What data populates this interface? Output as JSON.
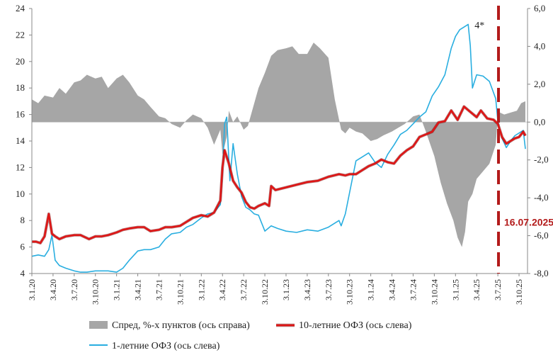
{
  "chart_data": {
    "type": "line",
    "title": "",
    "left_axis": {
      "min": 4,
      "max": 24,
      "ticks": [
        "24",
        "22",
        "20",
        "18",
        "16",
        "14",
        "12",
        "10",
        "8",
        "6",
        "4"
      ]
    },
    "right_axis": {
      "min": -8,
      "max": 6,
      "ticks": [
        "6,0",
        "4,0",
        "2,0",
        "0,0",
        "-2,0",
        "-4,0",
        "-6,0",
        "-8,0"
      ]
    },
    "x_labels": [
      "3.1.20",
      "3.4.20",
      "3.7.20",
      "3.10.20",
      "3.1.21",
      "3.4.21",
      "3.7.21",
      "3.10.21",
      "3.1.22",
      "3.4.22",
      "3.7.22",
      "3.10.22",
      "3.1.23",
      "3.4.23",
      "3.7.23",
      "3.10.23",
      "3.1.24",
      "3.4.24",
      "3.7.24",
      "3.10.24",
      "3.1.25",
      "3.4.25",
      "3.7.25",
      "3.10.25"
    ],
    "x_range": [
      0,
      23.4
    ],
    "marker_label": "4*",
    "marker_x": 20.7,
    "marker_y": 22.6,
    "vline_x": 22.03,
    "vline_label": "16.07.2025",
    "vline_label_y": 7.6,
    "series": [
      {
        "name": "Спред, %-х пунктов (ось справа)",
        "axis": "right",
        "type": "area",
        "color": "#a6a6a6",
        "x": [
          0,
          0.3,
          0.6,
          1.0,
          1.3,
          1.6,
          2.0,
          2.3,
          2.6,
          3.0,
          3.3,
          3.6,
          4.0,
          4.3,
          4.6,
          5.0,
          5.3,
          5.6,
          6.0,
          6.3,
          6.6,
          7.0,
          7.3,
          7.6,
          8.0,
          8.3,
          8.6,
          8.9,
          9.0,
          9.2,
          9.3,
          9.5,
          9.7,
          10.0,
          10.2,
          10.4,
          10.7,
          11.0,
          11.3,
          11.6,
          12.0,
          12.3,
          12.6,
          13.0,
          13.3,
          13.6,
          14.0,
          14.3,
          14.6,
          14.8,
          15.0,
          15.3,
          15.6,
          16.0,
          16.3,
          16.6,
          17.0,
          17.3,
          17.6,
          18.0,
          18.3,
          18.6,
          19.0,
          19.3,
          19.6,
          19.9,
          20.1,
          20.3,
          20.45,
          20.6,
          20.8,
          21.0,
          21.3,
          21.6,
          21.9,
          22.0,
          22.1,
          22.3,
          22.6,
          22.9,
          23.1,
          23.3
        ],
        "values": [
          1.2,
          1.0,
          1.4,
          1.3,
          1.8,
          1.5,
          2.1,
          2.2,
          2.5,
          2.3,
          2.4,
          1.8,
          2.3,
          2.5,
          2.1,
          1.4,
          1.2,
          0.8,
          0.3,
          0.2,
          -0.1,
          -0.3,
          0.1,
          0.4,
          0.2,
          -0.3,
          -1.2,
          -0.4,
          -1.7,
          -0.8,
          0.6,
          0.0,
          0.3,
          -0.4,
          -0.2,
          0.6,
          1.8,
          2.6,
          3.5,
          3.8,
          3.9,
          4.0,
          3.6,
          3.6,
          4.2,
          3.9,
          3.4,
          1.2,
          -0.4,
          -0.6,
          -0.3,
          -0.5,
          -0.6,
          -1.0,
          -0.9,
          -0.7,
          -0.5,
          -0.3,
          -0.1,
          0.3,
          0.4,
          -0.5,
          -1.8,
          -3.2,
          -4.3,
          -5.2,
          -6.1,
          -6.6,
          -5.8,
          -4.2,
          -3.8,
          -3.0,
          -2.6,
          -2.2,
          -1.2,
          0.3,
          0.5,
          0.4,
          0.5,
          0.6,
          1.0,
          1.1
        ]
      },
      {
        "name": "10-летние ОФЗ (ось слева)",
        "axis": "left",
        "color": "#e01414",
        "x": [
          0,
          0.2,
          0.4,
          0.6,
          0.8,
          0.95,
          1.1,
          1.3,
          1.6,
          2.0,
          2.3,
          2.7,
          3.0,
          3.3,
          3.6,
          4.0,
          4.3,
          4.6,
          5.0,
          5.3,
          5.6,
          6.0,
          6.3,
          6.6,
          7.0,
          7.3,
          7.6,
          8.0,
          8.3,
          8.6,
          8.9,
          9.0,
          9.1,
          9.3,
          9.5,
          9.7,
          9.9,
          10.1,
          10.3,
          10.5,
          10.7,
          11.0,
          11.2,
          11.3,
          11.5,
          12.0,
          12.5,
          13.0,
          13.5,
          14.0,
          14.5,
          14.8,
          15.0,
          15.3,
          15.6,
          15.9,
          16.2,
          16.5,
          16.8,
          17.1,
          17.4,
          17.7,
          18.0,
          18.3,
          18.6,
          18.9,
          19.2,
          19.5,
          19.8,
          20.1,
          20.4,
          20.7,
          21.0,
          21.2,
          21.5,
          21.8,
          22.0,
          22.2,
          22.4,
          22.6,
          22.8,
          23.0,
          23.2,
          23.3
        ],
        "values": [
          6.4,
          6.4,
          6.3,
          6.8,
          8.5,
          7.0,
          6.8,
          6.6,
          6.8,
          6.9,
          6.9,
          6.6,
          6.8,
          6.8,
          6.9,
          7.1,
          7.3,
          7.4,
          7.5,
          7.5,
          7.2,
          7.3,
          7.5,
          7.5,
          7.6,
          7.9,
          8.2,
          8.4,
          8.3,
          8.6,
          9.5,
          12.0,
          13.3,
          12.3,
          11.0,
          10.5,
          10.1,
          9.4,
          9.0,
          8.9,
          9.1,
          9.3,
          9.1,
          10.6,
          10.3,
          10.5,
          10.7,
          10.9,
          11.0,
          11.3,
          11.5,
          11.4,
          11.5,
          11.5,
          11.8,
          12.1,
          12.3,
          12.6,
          12.4,
          12.3,
          12.9,
          13.3,
          13.6,
          14.3,
          14.5,
          14.7,
          15.4,
          15.5,
          16.3,
          15.6,
          16.6,
          16.2,
          15.8,
          16.3,
          15.7,
          15.6,
          15.3,
          14.3,
          13.8,
          14.0,
          14.2,
          14.3,
          14.7,
          14.4
        ]
      },
      {
        "name": "1-летние ОФЗ (ось слева)",
        "axis": "left",
        "color": "#29aee0",
        "x": [
          0,
          0.3,
          0.6,
          0.8,
          0.95,
          1.1,
          1.3,
          1.6,
          2.0,
          2.3,
          2.6,
          3.0,
          3.3,
          3.6,
          4.0,
          4.3,
          4.6,
          5.0,
          5.3,
          5.6,
          6.0,
          6.3,
          6.6,
          7.0,
          7.3,
          7.6,
          8.0,
          8.3,
          8.6,
          8.9,
          9.0,
          9.1,
          9.2,
          9.35,
          9.5,
          9.7,
          9.9,
          10.1,
          10.3,
          10.5,
          10.7,
          11.0,
          11.3,
          11.6,
          12.0,
          12.5,
          13.0,
          13.5,
          14.0,
          14.3,
          14.5,
          14.6,
          14.8,
          15.0,
          15.3,
          15.6,
          15.9,
          16.2,
          16.5,
          16.8,
          17.1,
          17.4,
          17.7,
          18.0,
          18.3,
          18.6,
          18.9,
          19.2,
          19.5,
          19.8,
          20.0,
          20.2,
          20.4,
          20.6,
          20.7,
          20.8,
          21.0,
          21.3,
          21.6,
          21.9,
          22.0,
          22.2,
          22.4,
          22.6,
          22.8,
          23.0,
          23.2,
          23.3
        ],
        "values": [
          5.3,
          5.4,
          5.3,
          5.8,
          6.9,
          5.0,
          4.6,
          4.4,
          4.2,
          4.1,
          4.1,
          4.2,
          4.2,
          4.2,
          4.1,
          4.4,
          5.0,
          5.7,
          5.8,
          5.8,
          6.0,
          6.6,
          7.0,
          7.1,
          7.5,
          7.7,
          8.2,
          8.5,
          8.6,
          9.2,
          11.5,
          15.3,
          15.8,
          11.0,
          13.8,
          11.5,
          9.8,
          9.0,
          8.8,
          8.5,
          8.4,
          7.2,
          7.6,
          7.4,
          7.2,
          7.1,
          7.3,
          7.2,
          7.5,
          7.8,
          8.0,
          7.6,
          8.5,
          10.1,
          12.5,
          12.8,
          13.1,
          12.4,
          12.0,
          13.0,
          13.7,
          14.5,
          14.8,
          15.3,
          15.8,
          16.2,
          17.4,
          18.1,
          19.0,
          21.0,
          21.9,
          22.4,
          22.6,
          22.8,
          21.2,
          18.0,
          19.0,
          18.9,
          18.5,
          17.2,
          15.5,
          14.2,
          13.5,
          14.0,
          14.4,
          14.6,
          14.8,
          13.4
        ]
      }
    ]
  }
}
